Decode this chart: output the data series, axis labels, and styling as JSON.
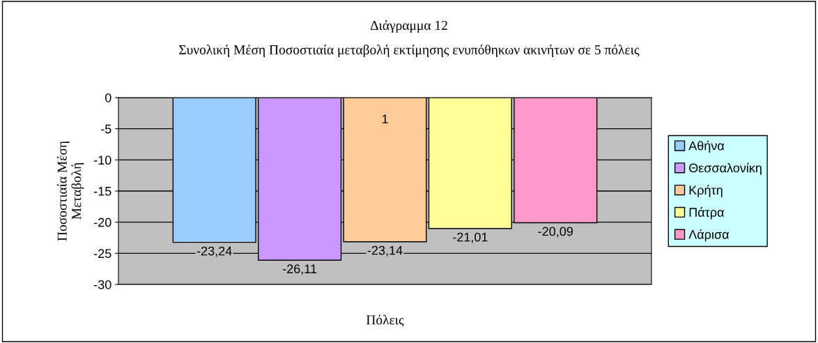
{
  "chart_data": {
    "type": "bar",
    "title": "Διάγραμμα 12",
    "subtitle": "Συνολική Μέση Ποσοστιαία μεταβολή εκτίμησης ενυπόθηκων ακινήτων σε 5 πόλεις",
    "xlabel": "Πόλεις",
    "ylabel": "Ποσοστιαία Μέση\nΜεταβολή",
    "categories": [
      null
    ],
    "series": [
      {
        "name": "Αθήνα",
        "color": "#99ccff",
        "values": [
          -23.24
        ],
        "value_labels": [
          "-23,24"
        ]
      },
      {
        "name": "Θεσσαλονίκη",
        "color": "#cc99ff",
        "values": [
          -26.11
        ],
        "value_labels": [
          "-26,11"
        ]
      },
      {
        "name": "Κρήτη",
        "color": "#ffcc99",
        "values": [
          -23.14
        ],
        "value_labels": [
          "-23,14"
        ]
      },
      {
        "name": "Πάτρα",
        "color": "#ffff99",
        "values": [
          -21.01
        ],
        "value_labels": [
          "-21,01"
        ]
      },
      {
        "name": "Λάρισα",
        "color": "#ff99cc",
        "values": [
          -20.09
        ],
        "value_labels": [
          "-20,09"
        ]
      }
    ],
    "annotations": [
      "1"
    ],
    "ylim": [
      -30,
      0
    ],
    "yticks": [
      -30,
      -25,
      -20,
      -15,
      -10,
      -5,
      0
    ],
    "grid": "y",
    "legend": "right"
  }
}
